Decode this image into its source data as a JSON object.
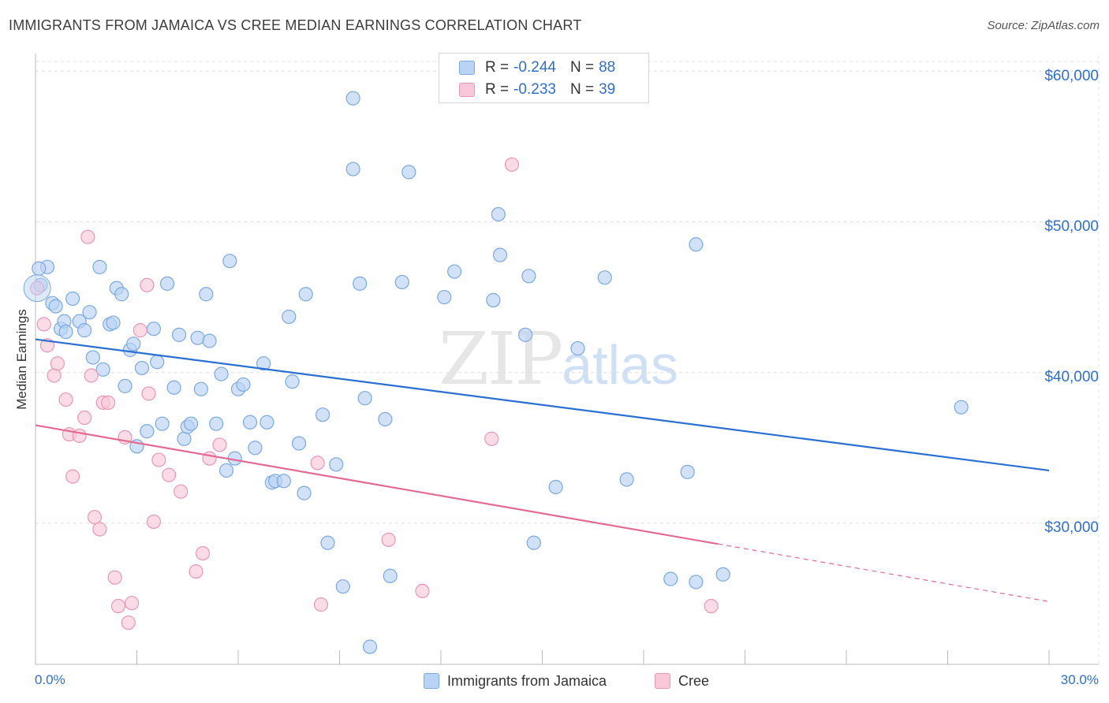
{
  "title": "IMMIGRANTS FROM JAMAICA VS CREE MEDIAN EARNINGS CORRELATION CHART",
  "source": "Source: ZipAtlas.com",
  "watermark": {
    "zip": "ZIP",
    "atlas": "atlas"
  },
  "legend": {
    "r_label": "R =",
    "n_label": "N =",
    "rows": [
      {
        "r": "-0.244",
        "n": "88"
      },
      {
        "r": "-0.233",
        "n": "39"
      }
    ]
  },
  "colors": {
    "jamaica_fill": "#b9d3f4",
    "jamaica_stroke": "#7aa9e4",
    "jamaica_line": "#2a6fd2",
    "cree_fill": "#f9c8d8",
    "cree_stroke": "#ea97b3",
    "cree_line": "#e36a94",
    "axis_text": "#2f6fd1",
    "grid": "#e0e0e0"
  },
  "chart_data": {
    "type": "scatter",
    "title": "IMMIGRANTS FROM JAMAICA VS CREE MEDIAN EARNINGS CORRELATION CHART",
    "xlabel": "",
    "ylabel": "Median Earnings",
    "xlim": [
      0,
      30
    ],
    "ylim": [
      20500,
      61500
    ],
    "x_tick_labels": [
      "0.0%",
      "30.0%"
    ],
    "y_ticks": [
      30000,
      40000,
      50000,
      60000
    ],
    "y_tick_labels": [
      "$30,000",
      "$40,000",
      "$50,000",
      "$60,000"
    ],
    "grid": true,
    "legend_position": "bottom",
    "series": [
      {
        "name": "Immigrants from Jamaica",
        "r": -0.244,
        "n": 88,
        "trend": {
          "x": [
            0,
            30
          ],
          "y": [
            42200,
            33500
          ],
          "dashed_from": null
        },
        "points": [
          [
            0.15,
            45800
          ],
          [
            0.35,
            47000
          ],
          [
            0.5,
            44600
          ],
          [
            0.6,
            44400
          ],
          [
            0.75,
            42900
          ],
          [
            0.85,
            43400
          ],
          [
            1.1,
            44900
          ],
          [
            1.3,
            43400
          ],
          [
            1.45,
            42800
          ],
          [
            1.6,
            44000
          ],
          [
            1.7,
            41000
          ],
          [
            1.9,
            47000
          ],
          [
            2.0,
            40200
          ],
          [
            2.2,
            43200
          ],
          [
            2.3,
            43300
          ],
          [
            2.4,
            45600
          ],
          [
            2.55,
            45200
          ],
          [
            2.65,
            39100
          ],
          [
            2.8,
            41500
          ],
          [
            2.9,
            41900
          ],
          [
            3.0,
            35100
          ],
          [
            3.15,
            40300
          ],
          [
            3.3,
            36100
          ],
          [
            3.5,
            42900
          ],
          [
            3.6,
            40700
          ],
          [
            3.75,
            36600
          ],
          [
            3.9,
            45900
          ],
          [
            4.1,
            39000
          ],
          [
            4.25,
            42500
          ],
          [
            4.4,
            35600
          ],
          [
            4.5,
            36400
          ],
          [
            4.6,
            36600
          ],
          [
            4.8,
            42300
          ],
          [
            4.9,
            38900
          ],
          [
            5.05,
            45200
          ],
          [
            5.15,
            42100
          ],
          [
            5.35,
            36600
          ],
          [
            5.5,
            39900
          ],
          [
            5.65,
            33500
          ],
          [
            5.75,
            47400
          ],
          [
            5.9,
            34300
          ],
          [
            6.0,
            38900
          ],
          [
            6.15,
            39200
          ],
          [
            6.35,
            36700
          ],
          [
            6.5,
            35000
          ],
          [
            6.75,
            40600
          ],
          [
            6.85,
            36700
          ],
          [
            7.0,
            32700
          ],
          [
            7.1,
            32800
          ],
          [
            7.35,
            32800
          ],
          [
            7.5,
            43700
          ],
          [
            7.6,
            39400
          ],
          [
            7.8,
            35300
          ],
          [
            7.95,
            32000
          ],
          [
            8.0,
            45200
          ],
          [
            8.5,
            37200
          ],
          [
            8.65,
            28700
          ],
          [
            8.9,
            33900
          ],
          [
            9.1,
            25800
          ],
          [
            9.4,
            58200
          ],
          [
            9.4,
            53500
          ],
          [
            9.6,
            45900
          ],
          [
            9.75,
            38300
          ],
          [
            9.9,
            21800
          ],
          [
            10.35,
            36900
          ],
          [
            10.5,
            26500
          ],
          [
            10.85,
            46000
          ],
          [
            11.05,
            53300
          ],
          [
            12.1,
            45000
          ],
          [
            12.4,
            46700
          ],
          [
            13.55,
            44800
          ],
          [
            13.7,
            50500
          ],
          [
            13.75,
            47800
          ],
          [
            14.5,
            42500
          ],
          [
            14.6,
            46400
          ],
          [
            14.75,
            28700
          ],
          [
            15.4,
            32400
          ],
          [
            16.05,
            41600
          ],
          [
            16.85,
            46300
          ],
          [
            17.5,
            32900
          ],
          [
            18.8,
            26300
          ],
          [
            19.3,
            33400
          ],
          [
            19.55,
            26100
          ],
          [
            19.55,
            48500
          ],
          [
            20.35,
            26600
          ],
          [
            27.4,
            37700
          ],
          [
            0.1,
            46900
          ],
          [
            0.9,
            42700
          ]
        ]
      },
      {
        "name": "Cree",
        "r": -0.233,
        "n": 39,
        "trend": {
          "x": [
            0,
            30
          ],
          "y": [
            36500,
            24800
          ],
          "dashed_from": 20.2
        },
        "points": [
          [
            0.05,
            45600
          ],
          [
            0.25,
            43200
          ],
          [
            0.35,
            41800
          ],
          [
            0.55,
            39800
          ],
          [
            0.65,
            40600
          ],
          [
            0.9,
            38200
          ],
          [
            1.0,
            35900
          ],
          [
            1.1,
            33100
          ],
          [
            1.3,
            35800
          ],
          [
            1.45,
            37000
          ],
          [
            1.55,
            49000
          ],
          [
            1.65,
            39800
          ],
          [
            1.75,
            30400
          ],
          [
            1.9,
            29600
          ],
          [
            2.0,
            38000
          ],
          [
            2.15,
            38000
          ],
          [
            2.35,
            26400
          ],
          [
            2.45,
            24500
          ],
          [
            2.65,
            35700
          ],
          [
            2.75,
            23400
          ],
          [
            2.85,
            24700
          ],
          [
            3.1,
            42800
          ],
          [
            3.3,
            45800
          ],
          [
            3.35,
            38600
          ],
          [
            3.5,
            30100
          ],
          [
            3.65,
            34200
          ],
          [
            3.95,
            33200
          ],
          [
            4.3,
            32100
          ],
          [
            4.75,
            26800
          ],
          [
            4.95,
            28000
          ],
          [
            5.15,
            34300
          ],
          [
            5.45,
            35200
          ],
          [
            8.35,
            34000
          ],
          [
            8.45,
            24600
          ],
          [
            10.45,
            28900
          ],
          [
            11.45,
            25500
          ],
          [
            13.5,
            35600
          ],
          [
            14.1,
            53800
          ],
          [
            20.0,
            24500
          ]
        ]
      }
    ]
  }
}
